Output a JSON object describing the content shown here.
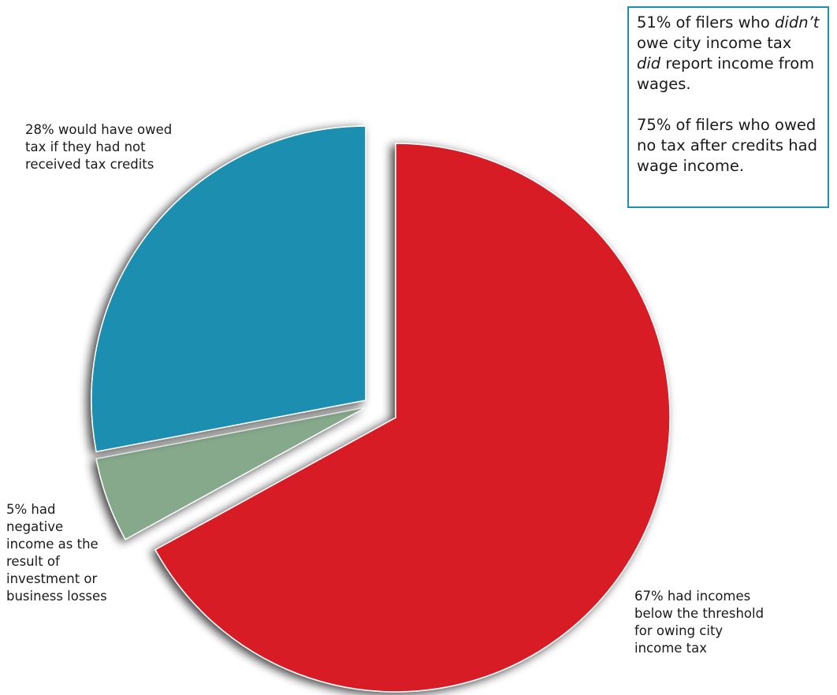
{
  "chart_data": {
    "type": "pie",
    "title": "",
    "slices": [
      {
        "value": 67,
        "color": "#d81f27",
        "label_lines": [
          "67% had incomes",
          "below the threshold",
          "for owing city",
          "income tax"
        ]
      },
      {
        "value": 5,
        "color": "#86a98b",
        "label_lines": [
          "5% had",
          "negative",
          "income as the",
          "result of",
          "investment or",
          "business losses"
        ]
      },
      {
        "value": 28,
        "color": "#1a8fb1",
        "label_lines": [
          "28% would have owed",
          "tax if they had not",
          "received tax credits"
        ]
      }
    ],
    "exploded": [
      "5%",
      "28%"
    ],
    "legend": "none"
  },
  "callout": {
    "para1": {
      "l1_pre": "51% of filers who ",
      "l1_em": "didn’t",
      "l2": "owe city income tax",
      "l3_em": "did",
      "l3_post": " report income from",
      "l4": "wages."
    },
    "para2": {
      "l1": "75% of filers who owed",
      "l2": "no tax after credits had",
      "l3": "wage income."
    },
    "border_color": "#1e8fb0"
  }
}
